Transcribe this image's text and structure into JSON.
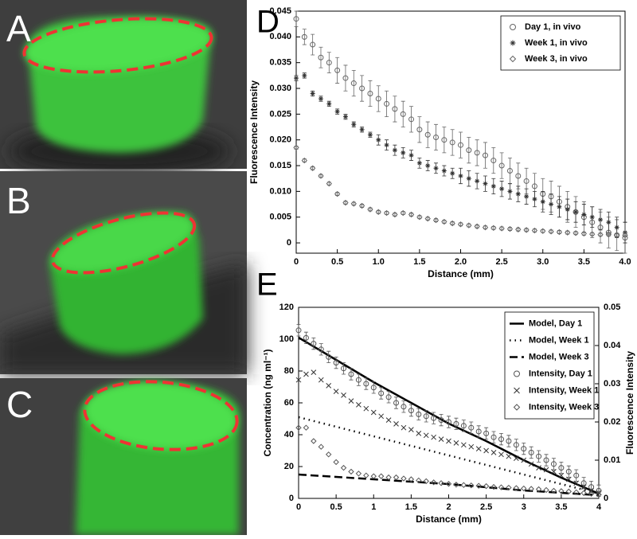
{
  "panels": [
    {
      "label": "A"
    },
    {
      "label": "B"
    },
    {
      "label": "C"
    }
  ],
  "chart_data": [
    {
      "type": "scatter",
      "panel": "D",
      "xlabel": "Distance (mm)",
      "ylabel": "Fluorescence Intensity",
      "legend": "upper right",
      "xlim": [
        0,
        4
      ],
      "ylim": [
        -0.002,
        0.045
      ],
      "xticks": [
        0,
        0.5,
        {
          "value": 1,
          "label": "1.0"
        },
        1.5,
        {
          "value": 2,
          "label": "2.0"
        },
        2.5,
        {
          "value": 3,
          "label": "3.0"
        },
        3.5,
        {
          "value": 4,
          "label": "4.0"
        }
      ],
      "yticks": [
        0,
        0.005,
        {
          "value": 0.01,
          "label": "0.010"
        },
        0.015,
        {
          "value": 0.02,
          "label": "0.020"
        },
        0.025,
        {
          "value": 0.03,
          "label": "0.030"
        },
        0.035,
        {
          "value": 0.04,
          "label": "0.040"
        },
        0.045
      ],
      "x": [
        0,
        0.1,
        0.2,
        0.3,
        0.4,
        0.5,
        0.6,
        0.7,
        0.8,
        0.9,
        1,
        1.1,
        1.2,
        1.3,
        1.4,
        1.5,
        1.6,
        1.7,
        1.8,
        1.9,
        2,
        2.1,
        2.2,
        2.3,
        2.4,
        2.5,
        2.6,
        2.7,
        2.8,
        2.9,
        3,
        3.1,
        3.2,
        3.3,
        3.4,
        3.5,
        3.6,
        3.7,
        3.8,
        3.9,
        4
      ],
      "series": [
        {
          "name": "Day 1, in vivo",
          "color": "#666666",
          "marker": "circle",
          "values": [
            0.0435,
            0.04,
            0.0385,
            0.036,
            0.035,
            0.0335,
            0.032,
            0.031,
            0.03,
            0.029,
            0.028,
            0.027,
            0.026,
            0.025,
            0.024,
            0.022,
            0.021,
            0.0205,
            0.02,
            0.0195,
            0.019,
            0.018,
            0.0175,
            0.017,
            0.016,
            0.015,
            0.014,
            0.013,
            0.012,
            0.011,
            0.0095,
            0.009,
            0.008,
            0.007,
            0.006,
            0.005,
            0.004,
            0.003,
            0.002,
            0.0015,
            0.001
          ],
          "errors": [
            0.0015,
            0.0015,
            0.002,
            0.002,
            0.002,
            0.0025,
            0.0025,
            0.0025,
            0.0025,
            0.0025,
            0.0025,
            0.0025,
            0.0025,
            0.0025,
            0.0025,
            0.0025,
            0.0025,
            0.0025,
            0.0025,
            0.0025,
            0.0025,
            0.0025,
            0.0025,
            0.0025,
            0.0025,
            0.0025,
            0.0025,
            0.0025,
            0.0025,
            0.0025,
            0.003,
            0.003,
            0.003,
            0.003,
            0.003,
            0.003,
            0.003,
            0.003,
            0.003,
            0.003,
            0.003
          ]
        },
        {
          "name": "Week 1, in vivo",
          "color": "#333333",
          "marker": "star",
          "values": [
            0.032,
            0.0325,
            0.029,
            0.028,
            0.027,
            0.0255,
            0.0245,
            0.023,
            0.022,
            0.021,
            0.02,
            0.019,
            0.018,
            0.0175,
            0.017,
            0.0155,
            0.015,
            0.0145,
            0.014,
            0.0135,
            0.013,
            0.0125,
            0.012,
            0.0115,
            0.011,
            0.0105,
            0.01,
            0.0095,
            0.009,
            0.0085,
            0.008,
            0.0075,
            0.007,
            0.0065,
            0.006,
            0.0055,
            0.005,
            0.0045,
            0.004,
            0.003,
            0.002
          ],
          "errors": [
            0.0005,
            0.0005,
            0.0005,
            0.0005,
            0.0005,
            0.0005,
            0.0005,
            0.0005,
            0.0005,
            0.0005,
            0.001,
            0.001,
            0.001,
            0.001,
            0.001,
            0.001,
            0.001,
            0.001,
            0.001,
            0.001,
            0.0015,
            0.0015,
            0.0015,
            0.0015,
            0.0015,
            0.0015,
            0.0015,
            0.0015,
            0.0015,
            0.0015,
            0.002,
            0.002,
            0.002,
            0.002,
            0.002,
            0.002,
            0.002,
            0.002,
            0.002,
            0.002,
            0.002
          ]
        },
        {
          "name": "Week 3, in vivo",
          "color": "#666666",
          "marker": "diamond",
          "values": [
            0.0185,
            0.016,
            0.0145,
            0.013,
            0.0115,
            0.0095,
            0.0078,
            0.0076,
            0.0072,
            0.0065,
            0.006,
            0.0058,
            0.0055,
            0.0058,
            0.0055,
            0.005,
            0.0047,
            0.0044,
            0.0041,
            0.0038,
            0.0036,
            0.0034,
            0.0032,
            0.003,
            0.0029,
            0.0028,
            0.0027,
            0.0026,
            0.0025,
            0.0024,
            0.0023,
            0.0022,
            0.0021,
            0.002,
            0.0019,
            0.0018,
            0.0017,
            0.0016,
            0.0016,
            0.0015,
            0.0015
          ],
          "errors": [
            0.0003,
            0.0003,
            0.0003,
            0.0003,
            0.0003,
            0.0003,
            0.0003,
            0.0003,
            0.0003,
            0.0003,
            0.0003,
            0.0003,
            0.0003,
            0.0003,
            0.0003,
            0.0003,
            0.0003,
            0.0003,
            0.0003,
            0.0003,
            0.0003,
            0.0003,
            0.0003,
            0.0003,
            0.0003,
            0.0003,
            0.0003,
            0.0003,
            0.0003,
            0.0003,
            0.0003,
            0.0003,
            0.0003,
            0.0003,
            0.0003,
            0.0003,
            0.0003,
            0.0003,
            0.0003,
            0.0003,
            0.0003
          ]
        }
      ]
    },
    {
      "type": "line",
      "panel": "E",
      "xlabel": "Distance (mm)",
      "ylabel": "Concentration (ng ml⁻¹)",
      "y2label": "Fluorescence Intensity",
      "legend": "upper right",
      "xlim": [
        0,
        4
      ],
      "ylim": [
        0,
        120
      ],
      "y2lim": [
        0,
        0.05
      ],
      "xticks": [
        0,
        0.5,
        1,
        1.5,
        2,
        2.5,
        3,
        3.5,
        4
      ],
      "yticks": [
        0,
        20,
        40,
        60,
        80,
        100,
        120
      ],
      "y2ticks": [
        0,
        0.01,
        0.02,
        0.03,
        0.04,
        0.05
      ],
      "x": [
        0,
        0.1,
        0.2,
        0.3,
        0.4,
        0.5,
        0.6,
        0.7,
        0.8,
        0.9,
        1,
        1.1,
        1.2,
        1.3,
        1.4,
        1.5,
        1.6,
        1.7,
        1.8,
        1.9,
        2,
        2.1,
        2.2,
        2.3,
        2.4,
        2.5,
        2.6,
        2.7,
        2.8,
        2.9,
        3,
        3.1,
        3.2,
        3.3,
        3.4,
        3.5,
        3.6,
        3.7,
        3.8,
        3.9,
        4
      ],
      "series": [
        {
          "name": "Model, Day 1",
          "color": "#000000",
          "dash": "solid",
          "x": [
            0,
            0.5,
            1,
            1.5,
            2,
            2.5,
            3,
            3.5,
            4
          ],
          "values": [
            101,
            87,
            73,
            60,
            47,
            36,
            24,
            13,
            3
          ]
        },
        {
          "name": "Model, Week 1",
          "color": "#000000",
          "dash": "dotted",
          "x": [
            0,
            0.5,
            1,
            1.5,
            2,
            2.5,
            3,
            3.5,
            4
          ],
          "values": [
            51,
            45,
            39,
            33,
            27,
            21,
            15,
            9,
            3
          ]
        },
        {
          "name": "Model, Week 3",
          "color": "#000000",
          "dash": "dashed",
          "x": [
            0,
            0.5,
            1,
            1.5,
            2,
            2.5,
            3,
            3.5,
            4
          ],
          "values": [
            15,
            13.5,
            12,
            10.5,
            9,
            7,
            5,
            3.5,
            2
          ]
        },
        {
          "name": "Intensity, Day 1",
          "color": "#555555",
          "marker": "circle",
          "axis": "y2",
          "values": [
            0.044,
            0.042,
            0.0405,
            0.039,
            0.037,
            0.0355,
            0.034,
            0.0325,
            0.031,
            0.03,
            0.029,
            0.0275,
            0.0265,
            0.025,
            0.024,
            0.023,
            0.022,
            0.0215,
            0.021,
            0.0205,
            0.02,
            0.0195,
            0.019,
            0.0185,
            0.0175,
            0.017,
            0.016,
            0.0155,
            0.015,
            0.014,
            0.013,
            0.012,
            0.011,
            0.01,
            0.009,
            0.008,
            0.007,
            0.006,
            0.004,
            0.003,
            0.002
          ],
          "errors": [
            0.0015,
            0.0015,
            0.0015,
            0.0015,
            0.0015,
            0.0015,
            0.0015,
            0.0015,
            0.0015,
            0.0015,
            0.0015,
            0.0015,
            0.0015,
            0.0015,
            0.0015,
            0.0015,
            0.0015,
            0.0015,
            0.0015,
            0.0015,
            0.0015,
            0.0015,
            0.0015,
            0.0015,
            0.0015,
            0.0015,
            0.0015,
            0.0015,
            0.0015,
            0.0015,
            0.0015,
            0.0015,
            0.0015,
            0.0015,
            0.0015,
            0.0015,
            0.0015,
            0.0015,
            0.0015,
            0.0015,
            0.0015
          ]
        },
        {
          "name": "Intensity, Week 1",
          "color": "#333333",
          "marker": "x",
          "axis": "y2",
          "values": [
            0.031,
            0.0325,
            0.033,
            0.031,
            0.0295,
            0.028,
            0.027,
            0.0255,
            0.0245,
            0.0235,
            0.0225,
            0.0215,
            0.0205,
            0.0195,
            0.0185,
            0.018,
            0.017,
            0.0165,
            0.016,
            0.0155,
            0.015,
            0.0145,
            0.014,
            0.0135,
            0.013,
            0.0125,
            0.012,
            0.0115,
            0.011,
            0.0105,
            0.01,
            0.009,
            0.008,
            0.0075,
            0.007,
            0.006,
            0.005,
            0.004,
            0.003,
            0.002,
            0.0015
          ]
        },
        {
          "name": "Intensity, Week 3",
          "color": "#555555",
          "marker": "diamond",
          "axis": "y2",
          "values": [
            0.0185,
            0.0185,
            0.015,
            0.0135,
            0.0115,
            0.0095,
            0.008,
            0.007,
            0.0065,
            0.006,
            0.0058,
            0.0058,
            0.0055,
            0.0055,
            0.0052,
            0.005,
            0.0047,
            0.0045,
            0.0042,
            0.004,
            0.0038,
            0.0036,
            0.0035,
            0.0034,
            0.0033,
            0.0032,
            0.003,
            0.0029,
            0.0028,
            0.0027,
            0.0026,
            0.0025,
            0.0024,
            0.0022,
            0.002,
            0.0019,
            0.0018,
            0.0016,
            0.0014,
            0.0012,
            0.001
          ]
        }
      ]
    }
  ]
}
